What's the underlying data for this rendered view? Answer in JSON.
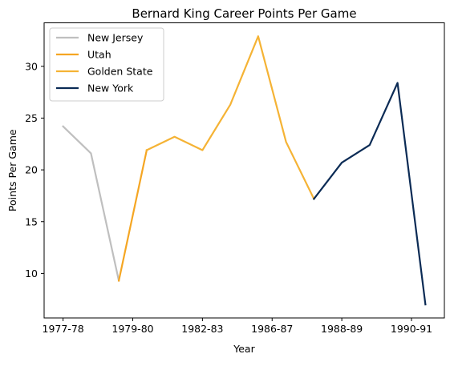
{
  "chart_data": {
    "type": "line",
    "title": "Bernard King Career Points Per Game",
    "xlabel": "Year",
    "ylabel": "Points Per Game",
    "grid": false,
    "legend_position": "top-left",
    "x_tick_labels": [
      "1977-78",
      "1979-80",
      "1982-83",
      "1986-87",
      "1988-89",
      "1990-91"
    ],
    "y_ticks": [
      10,
      15,
      20,
      25,
      30
    ],
    "xlim": [
      -0.68,
      13.68
    ],
    "ylim": [
      5.7,
      34.2
    ],
    "series": [
      {
        "name": "New Jersey",
        "color": "#bfbfbf",
        "x": [
          0,
          1,
          2
        ],
        "y": [
          24.2,
          21.6,
          9.3
        ]
      },
      {
        "name": "Utah",
        "color": "#f5a623",
        "x": [
          2,
          3
        ],
        "y": [
          9.3,
          21.9
        ]
      },
      {
        "name": "Golden State",
        "color": "#f5b335",
        "x": [
          3,
          4,
          5,
          6,
          7,
          8,
          9
        ],
        "y": [
          21.9,
          23.2,
          21.9,
          26.3,
          32.9,
          22.7,
          17.2
        ]
      },
      {
        "name": "New York",
        "color": "#0b2b55",
        "x": [
          9,
          10,
          11,
          12,
          13
        ],
        "y": [
          17.2,
          20.7,
          22.4,
          28.4,
          7.0
        ]
      }
    ]
  }
}
